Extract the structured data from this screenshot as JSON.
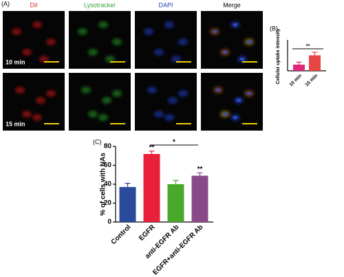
{
  "panel_a": {
    "label": "(A)",
    "columns": [
      "DiI",
      "Lysotracker",
      "DAPI",
      "Merge"
    ],
    "rows": [
      "10 min",
      "15 min"
    ]
  },
  "chart_data": [
    {
      "type": "bar",
      "label": "(B)",
      "y_label": "Cellular uptake intensity",
      "categories": [
        "10 min",
        "15 min"
      ],
      "values": [
        5,
        12.5
      ],
      "errors": [
        2,
        2.5
      ],
      "colors": [
        "#e0287a",
        "#e84545"
      ],
      "ylim": [
        0,
        25
      ],
      "annotations": [
        "**"
      ]
    },
    {
      "type": "bar",
      "label": "(C)",
      "y_label": "% of cells with NAs",
      "categories": [
        "Control",
        "EGFR",
        "anti-EGFR Ab",
        "EGFR+anti-EGFR Ab"
      ],
      "values": [
        37,
        72,
        40,
        49
      ],
      "errors": [
        4,
        3,
        4,
        3
      ],
      "colors": [
        "#2a4a9a",
        "#e8203a",
        "#4aa82a",
        "#8a4a8a"
      ],
      "ylim": [
        0,
        80
      ],
      "yticks": [
        0,
        20,
        40,
        60,
        80
      ],
      "annotations": [
        "**",
        "*",
        "**"
      ]
    }
  ]
}
